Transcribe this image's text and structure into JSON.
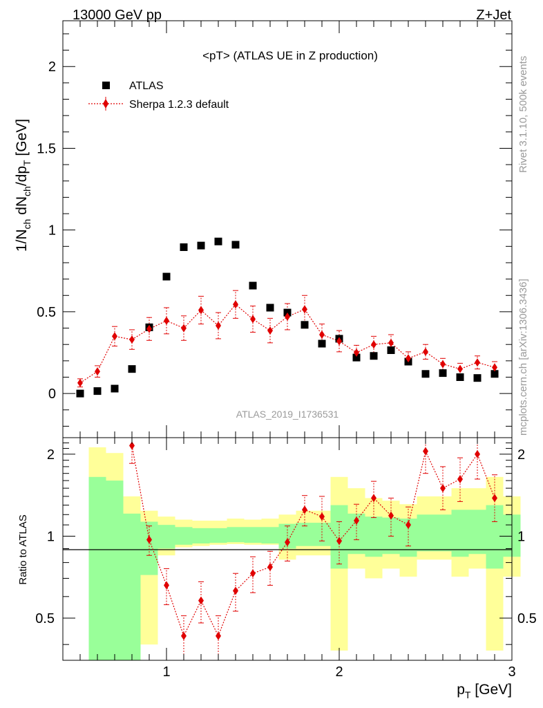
{
  "header": {
    "left": "13000 GeV pp",
    "right": "Z+Jet"
  },
  "side_labels": {
    "rivet": "Rivet 3.1.10,  500k events",
    "mcplots": "mcplots.cern.ch [arXiv:1306.3436]"
  },
  "chart_data": [
    {
      "type": "scatter",
      "title": "<pT> (ATLAS UE in Z production)",
      "watermark": "ATLAS_2019_I1736531",
      "xlabel": "p_T [GeV]",
      "ylabel": "1/N_ch dN_ch/dp_T [GeV]",
      "xlim": [
        0.4,
        3.0
      ],
      "ylim": [
        -0.27,
        2.28
      ],
      "x_ticks": [
        1,
        2,
        3
      ],
      "y_ticks": [
        0,
        0.5,
        1,
        1.5,
        2
      ],
      "y_tick_labels": [
        "0",
        "0.5",
        "1",
        "1.5",
        "2"
      ],
      "legend_position": "top-left",
      "x": [
        0.5,
        0.6,
        0.7,
        0.8,
        0.9,
        1.0,
        1.1,
        1.2,
        1.3,
        1.4,
        1.5,
        1.6,
        1.7,
        1.8,
        1.9,
        2.0,
        2.1,
        2.2,
        2.3,
        2.4,
        2.5,
        2.6,
        2.7,
        2.8,
        2.9
      ],
      "series": [
        {
          "name": "ATLAS",
          "marker": "square",
          "color": "#000000",
          "values": [
            0.0,
            0.015,
            0.03,
            0.15,
            0.405,
            0.715,
            0.895,
            0.905,
            0.93,
            0.91,
            0.66,
            0.525,
            0.495,
            0.42,
            0.305,
            0.335,
            0.22,
            0.23,
            0.265,
            0.195,
            0.12,
            0.125,
            0.1,
            0.095,
            0.12
          ]
        },
        {
          "name": "Sherpa 1.2.3 default",
          "marker": "diamond",
          "line": "dotted",
          "color": "#e00000",
          "values": [
            0.065,
            0.135,
            0.35,
            0.33,
            0.395,
            0.445,
            0.4,
            0.51,
            0.415,
            0.545,
            0.455,
            0.385,
            0.47,
            0.515,
            0.36,
            0.32,
            0.25,
            0.3,
            0.31,
            0.215,
            0.255,
            0.18,
            0.15,
            0.19,
            0.16
          ],
          "errors": [
            0.025,
            0.035,
            0.06,
            0.06,
            0.07,
            0.08,
            0.075,
            0.085,
            0.08,
            0.085,
            0.08,
            0.075,
            0.08,
            0.085,
            0.065,
            0.065,
            0.045,
            0.05,
            0.05,
            0.04,
            0.045,
            0.035,
            0.035,
            0.04,
            0.035
          ]
        }
      ]
    },
    {
      "type": "scatter",
      "ylabel": "Ratio to ATLAS",
      "xlim": [
        0.4,
        3.0
      ],
      "ylim": [
        0.35,
        2.3
      ],
      "x_ticks": [
        1,
        2,
        3
      ],
      "x_tick_labels": [
        "1",
        "2",
        "3"
      ],
      "y_ticks": [
        0.5,
        1,
        2
      ],
      "y_tick_labels": [
        "0.5",
        "1",
        "2"
      ],
      "reference_line": 1,
      "bands": {
        "x_edges": [
          0.55,
          0.65,
          0.75,
          0.85,
          0.95,
          1.05,
          1.15,
          1.25,
          1.35,
          1.45,
          1.55,
          1.65,
          1.75,
          1.85,
          1.95,
          2.05,
          2.15,
          2.25,
          2.35,
          2.45,
          2.55,
          2.65,
          2.75,
          2.85,
          2.95
        ],
        "yellow_low": [
          0.0,
          0.0,
          0.0,
          0.4,
          0.85,
          0.91,
          0.92,
          0.93,
          0.935,
          0.93,
          0.93,
          0.82,
          0.85,
          0.85,
          0.38,
          0.76,
          0.7,
          0.76,
          0.71,
          0.82,
          0.82,
          0.71,
          0.76,
          0.38,
          0.71
        ],
        "yellow_high": [
          2.12,
          2.02,
          1.4,
          1.24,
          1.18,
          1.15,
          1.14,
          1.14,
          1.16,
          1.15,
          1.16,
          1.2,
          1.24,
          1.24,
          1.65,
          1.5,
          1.38,
          1.35,
          1.31,
          1.4,
          1.4,
          1.5,
          1.5,
          1.65,
          1.4
        ],
        "green_low": [
          0.0,
          0.0,
          0.0,
          0.72,
          0.9,
          0.93,
          0.94,
          0.945,
          0.95,
          0.945,
          0.94,
          0.9,
          0.92,
          0.92,
          0.76,
          0.86,
          0.84,
          0.86,
          0.84,
          0.88,
          0.88,
          0.84,
          0.86,
          0.76,
          0.84
        ],
        "green_high": [
          1.65,
          1.6,
          1.21,
          1.13,
          1.1,
          1.08,
          1.07,
          1.07,
          1.08,
          1.08,
          1.08,
          1.11,
          1.12,
          1.12,
          1.3,
          1.21,
          1.18,
          1.17,
          1.16,
          1.2,
          1.2,
          1.25,
          1.25,
          1.3,
          1.2
        ]
      },
      "series": [
        {
          "name": "Sherpa 1.2.3 default",
          "marker": "diamond",
          "color": "#e00000",
          "x": [
            0.8,
            0.9,
            1.0,
            1.1,
            1.2,
            1.3,
            1.4,
            1.5,
            1.6,
            1.7,
            1.8,
            1.9,
            2.0,
            2.1,
            2.2,
            2.3,
            2.4,
            2.5,
            2.6,
            2.7,
            2.8,
            2.9
          ],
          "values": [
            2.15,
            0.97,
            0.66,
            0.43,
            0.58,
            0.43,
            0.63,
            0.73,
            0.77,
            0.95,
            1.25,
            1.18,
            0.96,
            1.14,
            1.38,
            1.19,
            1.1,
            2.05,
            1.5,
            1.62,
            2.0,
            1.38
          ],
          "err_low": [
            0.3,
            0.12,
            0.1,
            0.08,
            0.1,
            0.08,
            0.1,
            0.11,
            0.11,
            0.14,
            0.16,
            0.22,
            0.17,
            0.17,
            0.21,
            0.19,
            0.18,
            0.35,
            0.25,
            0.28,
            0.38,
            0.25
          ],
          "err_high": [
            0.3,
            0.12,
            0.1,
            0.08,
            0.1,
            0.08,
            0.1,
            0.11,
            0.11,
            0.14,
            0.16,
            0.22,
            0.17,
            0.17,
            0.21,
            0.19,
            0.18,
            0.4,
            0.3,
            0.32,
            0.45,
            0.3
          ]
        }
      ]
    }
  ]
}
